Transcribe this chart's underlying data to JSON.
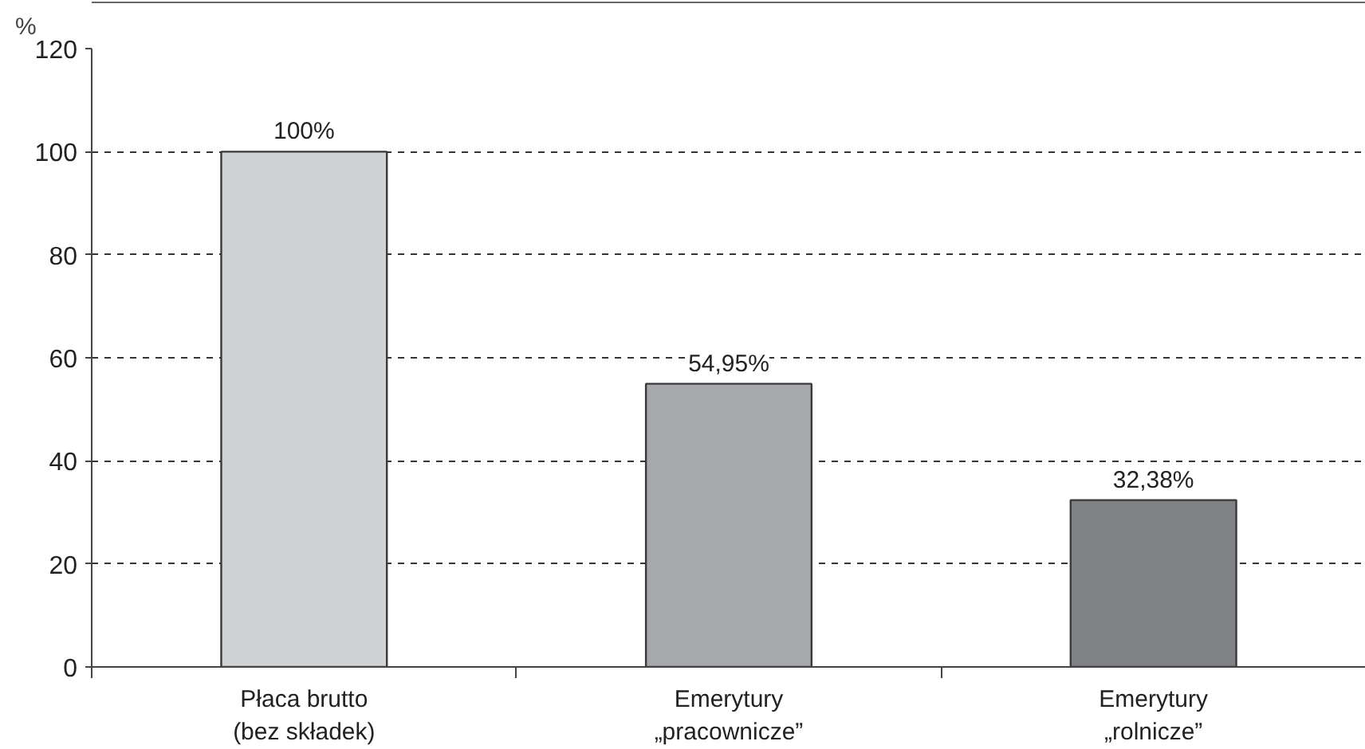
{
  "chart_data": {
    "type": "bar",
    "ylabel": "%",
    "categories": [
      "Płaca brutto\n(bez składek)",
      "Emerytury\n„pracownicze”",
      "Emerytury\n„rolnicze”"
    ],
    "values": [
      100,
      54.95,
      32.38
    ],
    "colors": [
      "#d1d2d4",
      "#a7a8ab",
      "#808185"
    ],
    "value_labels": [
      "100%",
      "54,95%",
      "32,38%"
    ],
    "ylim": [
      0,
      120
    ],
    "yticks": [
      0,
      20,
      40,
      60,
      80,
      100,
      120
    ],
    "grid": "y"
  }
}
